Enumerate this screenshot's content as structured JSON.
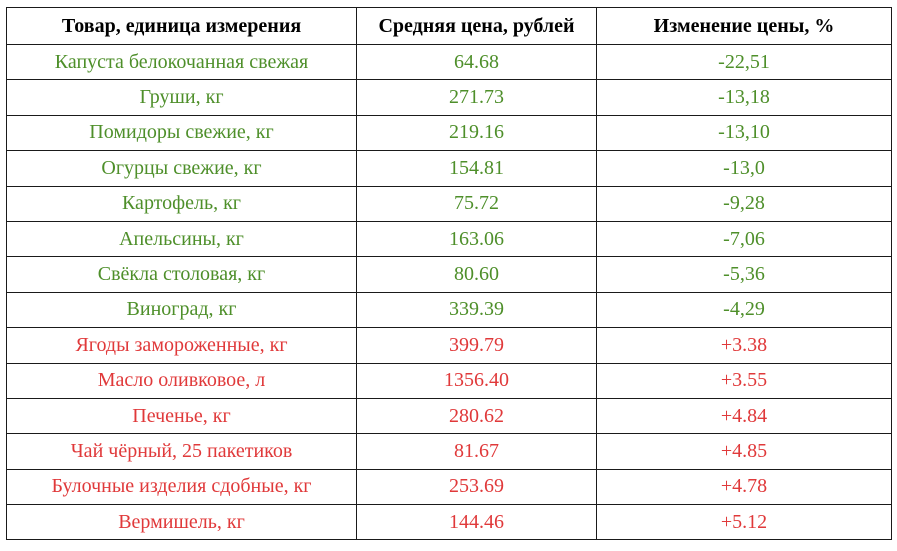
{
  "headers": [
    "Товар, единица измерения",
    "Средняя цена, рублей",
    "Изменение цены, %"
  ],
  "colors": {
    "decrease": "#4e8f2a",
    "increase": "#e0393a",
    "border": "#1a1a1a"
  },
  "rows": [
    {
      "item": "Капуста белокочанная свежая",
      "price": "64.68",
      "change": "-22,51",
      "trend": "down"
    },
    {
      "item": "Груши, кг",
      "price": "271.73",
      "change": "-13,18",
      "trend": "down"
    },
    {
      "item": "Помидоры свежие, кг",
      "price": "219.16",
      "change": "-13,10",
      "trend": "down"
    },
    {
      "item": "Огурцы свежие, кг",
      "price": "154.81",
      "change": "-13,0",
      "trend": "down"
    },
    {
      "item": "Картофель, кг",
      "price": "75.72",
      "change": "-9,28",
      "trend": "down"
    },
    {
      "item": "Апельсины, кг",
      "price": "163.06",
      "change": "-7,06",
      "trend": "down"
    },
    {
      "item": "Свёкла столовая, кг",
      "price": "80.60",
      "change": "-5,36",
      "trend": "down"
    },
    {
      "item": "Виноград, кг",
      "price": "339.39",
      "change": "-4,29",
      "trend": "down"
    },
    {
      "item": "Ягоды замороженные, кг",
      "price": "399.79",
      "change": "+3.38",
      "trend": "up"
    },
    {
      "item": "Масло оливковое, л",
      "price": "1356.40",
      "change": "+3.55",
      "trend": "up"
    },
    {
      "item": "Печенье, кг",
      "price": "280.62",
      "change": "+4.84",
      "trend": "up"
    },
    {
      "item": "Чай чёрный, 25 пакетиков",
      "price": "81.67",
      "change": "+4.85",
      "trend": "up"
    },
    {
      "item": "Булочные изделия сдобные, кг",
      "price": "253.69",
      "change": "+4.78",
      "trend": "up"
    },
    {
      "item": "Вермишель, кг",
      "price": "144.46",
      "change": "+5.12",
      "trend": "up"
    }
  ]
}
